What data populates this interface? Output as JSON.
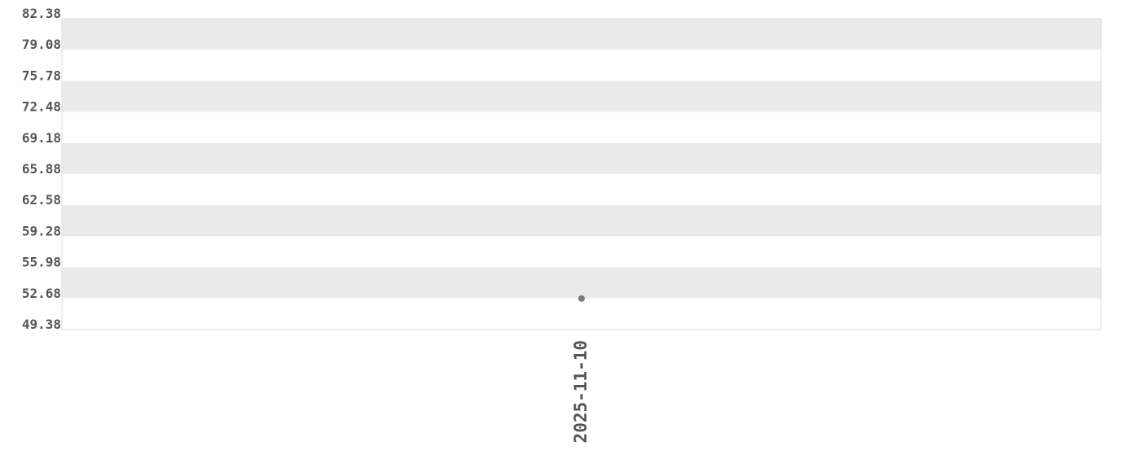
{
  "chart_data": {
    "type": "scatter",
    "title": "",
    "xlabel": "",
    "ylabel": "",
    "ylim": [
      49.38,
      82.38
    ],
    "y_ticks": [
      "82.38",
      "79.08",
      "75.78",
      "72.48",
      "69.18",
      "65.88",
      "62.58",
      "59.28",
      "55.98",
      "52.68",
      "49.38"
    ],
    "x_ticks": [
      "2025-11-10"
    ],
    "grid": "alternating horizontal bands",
    "points": [
      {
        "x": "2025-11-10",
        "y": 52.68
      }
    ],
    "colors": {
      "band": "#ebebeb",
      "point": "#777777",
      "text": "#555555",
      "border": "#dddddd"
    }
  }
}
